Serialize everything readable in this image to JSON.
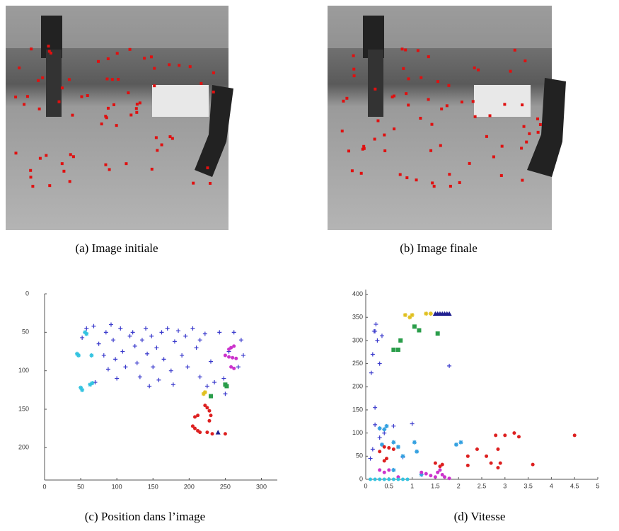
{
  "images": [
    {
      "caption": "(a) Image initiale"
    },
    {
      "caption": "(b) Image finale"
    }
  ],
  "chart_data": [
    {
      "type": "scatter",
      "caption": "(c) Position dans l’image",
      "xlim": [
        0,
        322
      ],
      "ylim": [
        0,
        242
      ],
      "y_inverted": true,
      "xticks": [
        0,
        50,
        100,
        150,
        200,
        250,
        300
      ],
      "yticks": [
        0,
        50,
        100,
        150,
        200
      ],
      "series": [
        {
          "color": "#3a3acc",
          "marker": "plus",
          "x": [
            52,
            58,
            68,
            75,
            85,
            82,
            88,
            95,
            98,
            105,
            108,
            112,
            118,
            122,
            125,
            128,
            135,
            140,
            142,
            148,
            150,
            155,
            158,
            162,
            165,
            170,
            175,
            180,
            185,
            190,
            195,
            198,
            205,
            210,
            215,
            222,
            230,
            235,
            242,
            248,
            255,
            262,
            268,
            272,
            275,
            250,
            225,
            215,
            92,
            70,
            132,
            100,
            145,
            178
          ],
          "values": [
            57,
            45,
            42,
            65,
            50,
            80,
            98,
            60,
            85,
            45,
            75,
            95,
            55,
            50,
            68,
            90,
            60,
            45,
            78,
            55,
            95,
            70,
            112,
            50,
            85,
            45,
            100,
            62,
            48,
            80,
            55,
            95,
            45,
            70,
            60,
            52,
            88,
            115,
            50,
            110,
            75,
            50,
            95,
            60,
            80,
            130,
            120,
            108,
            40,
            115,
            108,
            110,
            120,
            118
          ]
        },
        {
          "color": "#33c3e0",
          "marker": "star",
          "x": [
            45,
            47,
            56,
            58,
            65,
            50,
            52,
            63,
            66
          ],
          "values": [
            78,
            80,
            50,
            52,
            80,
            122,
            125,
            118,
            116
          ]
        },
        {
          "color": "#dd2020",
          "marker": "dot",
          "x": [
            205,
            208,
            212,
            215,
            208,
            212,
            225,
            228,
            230,
            228,
            225,
            232,
            250,
            222
          ],
          "values": [
            172,
            175,
            178,
            180,
            160,
            158,
            148,
            152,
            158,
            165,
            180,
            182,
            182,
            145
          ]
        },
        {
          "color": "#cc33cc",
          "marker": "dot",
          "x": [
            255,
            258,
            262,
            250,
            255,
            260,
            265,
            258,
            262
          ],
          "values": [
            72,
            70,
            68,
            80,
            82,
            83,
            84,
            95,
            97
          ]
        },
        {
          "color": "#2a9d4a",
          "marker": "square",
          "x": [
            230,
            250,
            252
          ],
          "values": [
            133,
            118,
            120
          ]
        },
        {
          "color": "#e0c020",
          "marker": "star",
          "x": [
            222,
            220
          ],
          "values": [
            128,
            130
          ]
        },
        {
          "color": "#202090",
          "marker": "triangle",
          "x": [
            240
          ],
          "values": [
            180
          ]
        }
      ]
    },
    {
      "type": "scatter",
      "caption": "(d) Vitesse",
      "xlim": [
        0,
        5
      ],
      "ylim": [
        0,
        410
      ],
      "xticks": [
        0,
        0.5,
        1,
        1.5,
        2,
        2.5,
        3,
        3.5,
        4,
        4.5,
        5
      ],
      "yticks": [
        0,
        50,
        100,
        150,
        200,
        250,
        300,
        350,
        400
      ],
      "series": [
        {
          "color": "#3a3acc",
          "marker": "plus",
          "x": [
            0.1,
            0.15,
            0.2,
            0.2,
            0.22,
            0.25,
            0.3,
            0.12,
            0.15,
            0.35,
            0.2,
            0.3,
            0.4,
            0.6,
            0.8,
            1.0,
            1.8,
            0.18
          ],
          "values": [
            45,
            65,
            155,
            320,
            335,
            300,
            250,
            230,
            270,
            310,
            118,
            90,
            100,
            115,
            48,
            120,
            245,
            320
          ]
        },
        {
          "color": "#33a0e0",
          "marker": "star",
          "x": [
            0.3,
            0.4,
            0.45,
            0.35,
            0.6,
            0.7,
            0.8,
            1.05,
            1.1,
            1.95,
            2.05,
            0.6,
            1.2
          ],
          "values": [
            110,
            108,
            115,
            75,
            80,
            70,
            50,
            80,
            60,
            75,
            80,
            20,
            10
          ]
        },
        {
          "color": "#dd2020",
          "marker": "dot",
          "x": [
            0.3,
            0.4,
            0.5,
            0.6,
            0.4,
            0.45,
            1.5,
            1.6,
            1.65,
            2.2,
            2.2,
            2.4,
            2.6,
            2.7,
            2.8,
            2.85,
            2.9,
            3.0,
            3.2,
            3.3,
            3.6,
            4.5,
            2.85
          ],
          "values": [
            60,
            70,
            68,
            65,
            40,
            45,
            35,
            28,
            32,
            30,
            50,
            65,
            50,
            35,
            95,
            25,
            35,
            95,
            100,
            92,
            32,
            95,
            65
          ]
        },
        {
          "color": "#cc33cc",
          "marker": "dot",
          "x": [
            0.3,
            0.4,
            0.5,
            1.2,
            1.3,
            1.4,
            1.5,
            1.55,
            1.6,
            1.65,
            1.7,
            1.8,
            0.7
          ],
          "values": [
            20,
            15,
            20,
            15,
            12,
            8,
            5,
            15,
            20,
            10,
            5,
            2,
            5
          ]
        },
        {
          "color": "#2a9d4a",
          "marker": "square",
          "x": [
            0.6,
            0.75,
            0.7,
            1.05,
            1.15,
            1.55
          ],
          "values": [
            280,
            300,
            280,
            330,
            322,
            315
          ]
        },
        {
          "color": "#e0c020",
          "marker": "star",
          "x": [
            0.85,
            0.95,
            1.3,
            1.4,
            1.0
          ],
          "values": [
            355,
            350,
            358,
            358,
            355
          ]
        },
        {
          "color": "#202090",
          "marker": "triangle",
          "x": [
            1.5,
            1.55,
            1.6,
            1.65,
            1.7,
            1.75,
            1.8
          ],
          "values": [
            358,
            358,
            358,
            358,
            358,
            358,
            358
          ]
        },
        {
          "color": "#33c3e0",
          "marker": "dot",
          "x": [
            0.1,
            0.2,
            0.3,
            0.4,
            0.5,
            0.6,
            0.7,
            0.8,
            0.9
          ],
          "values": [
            0,
            0,
            0,
            0,
            0,
            0,
            0,
            0,
            0
          ]
        }
      ]
    }
  ]
}
